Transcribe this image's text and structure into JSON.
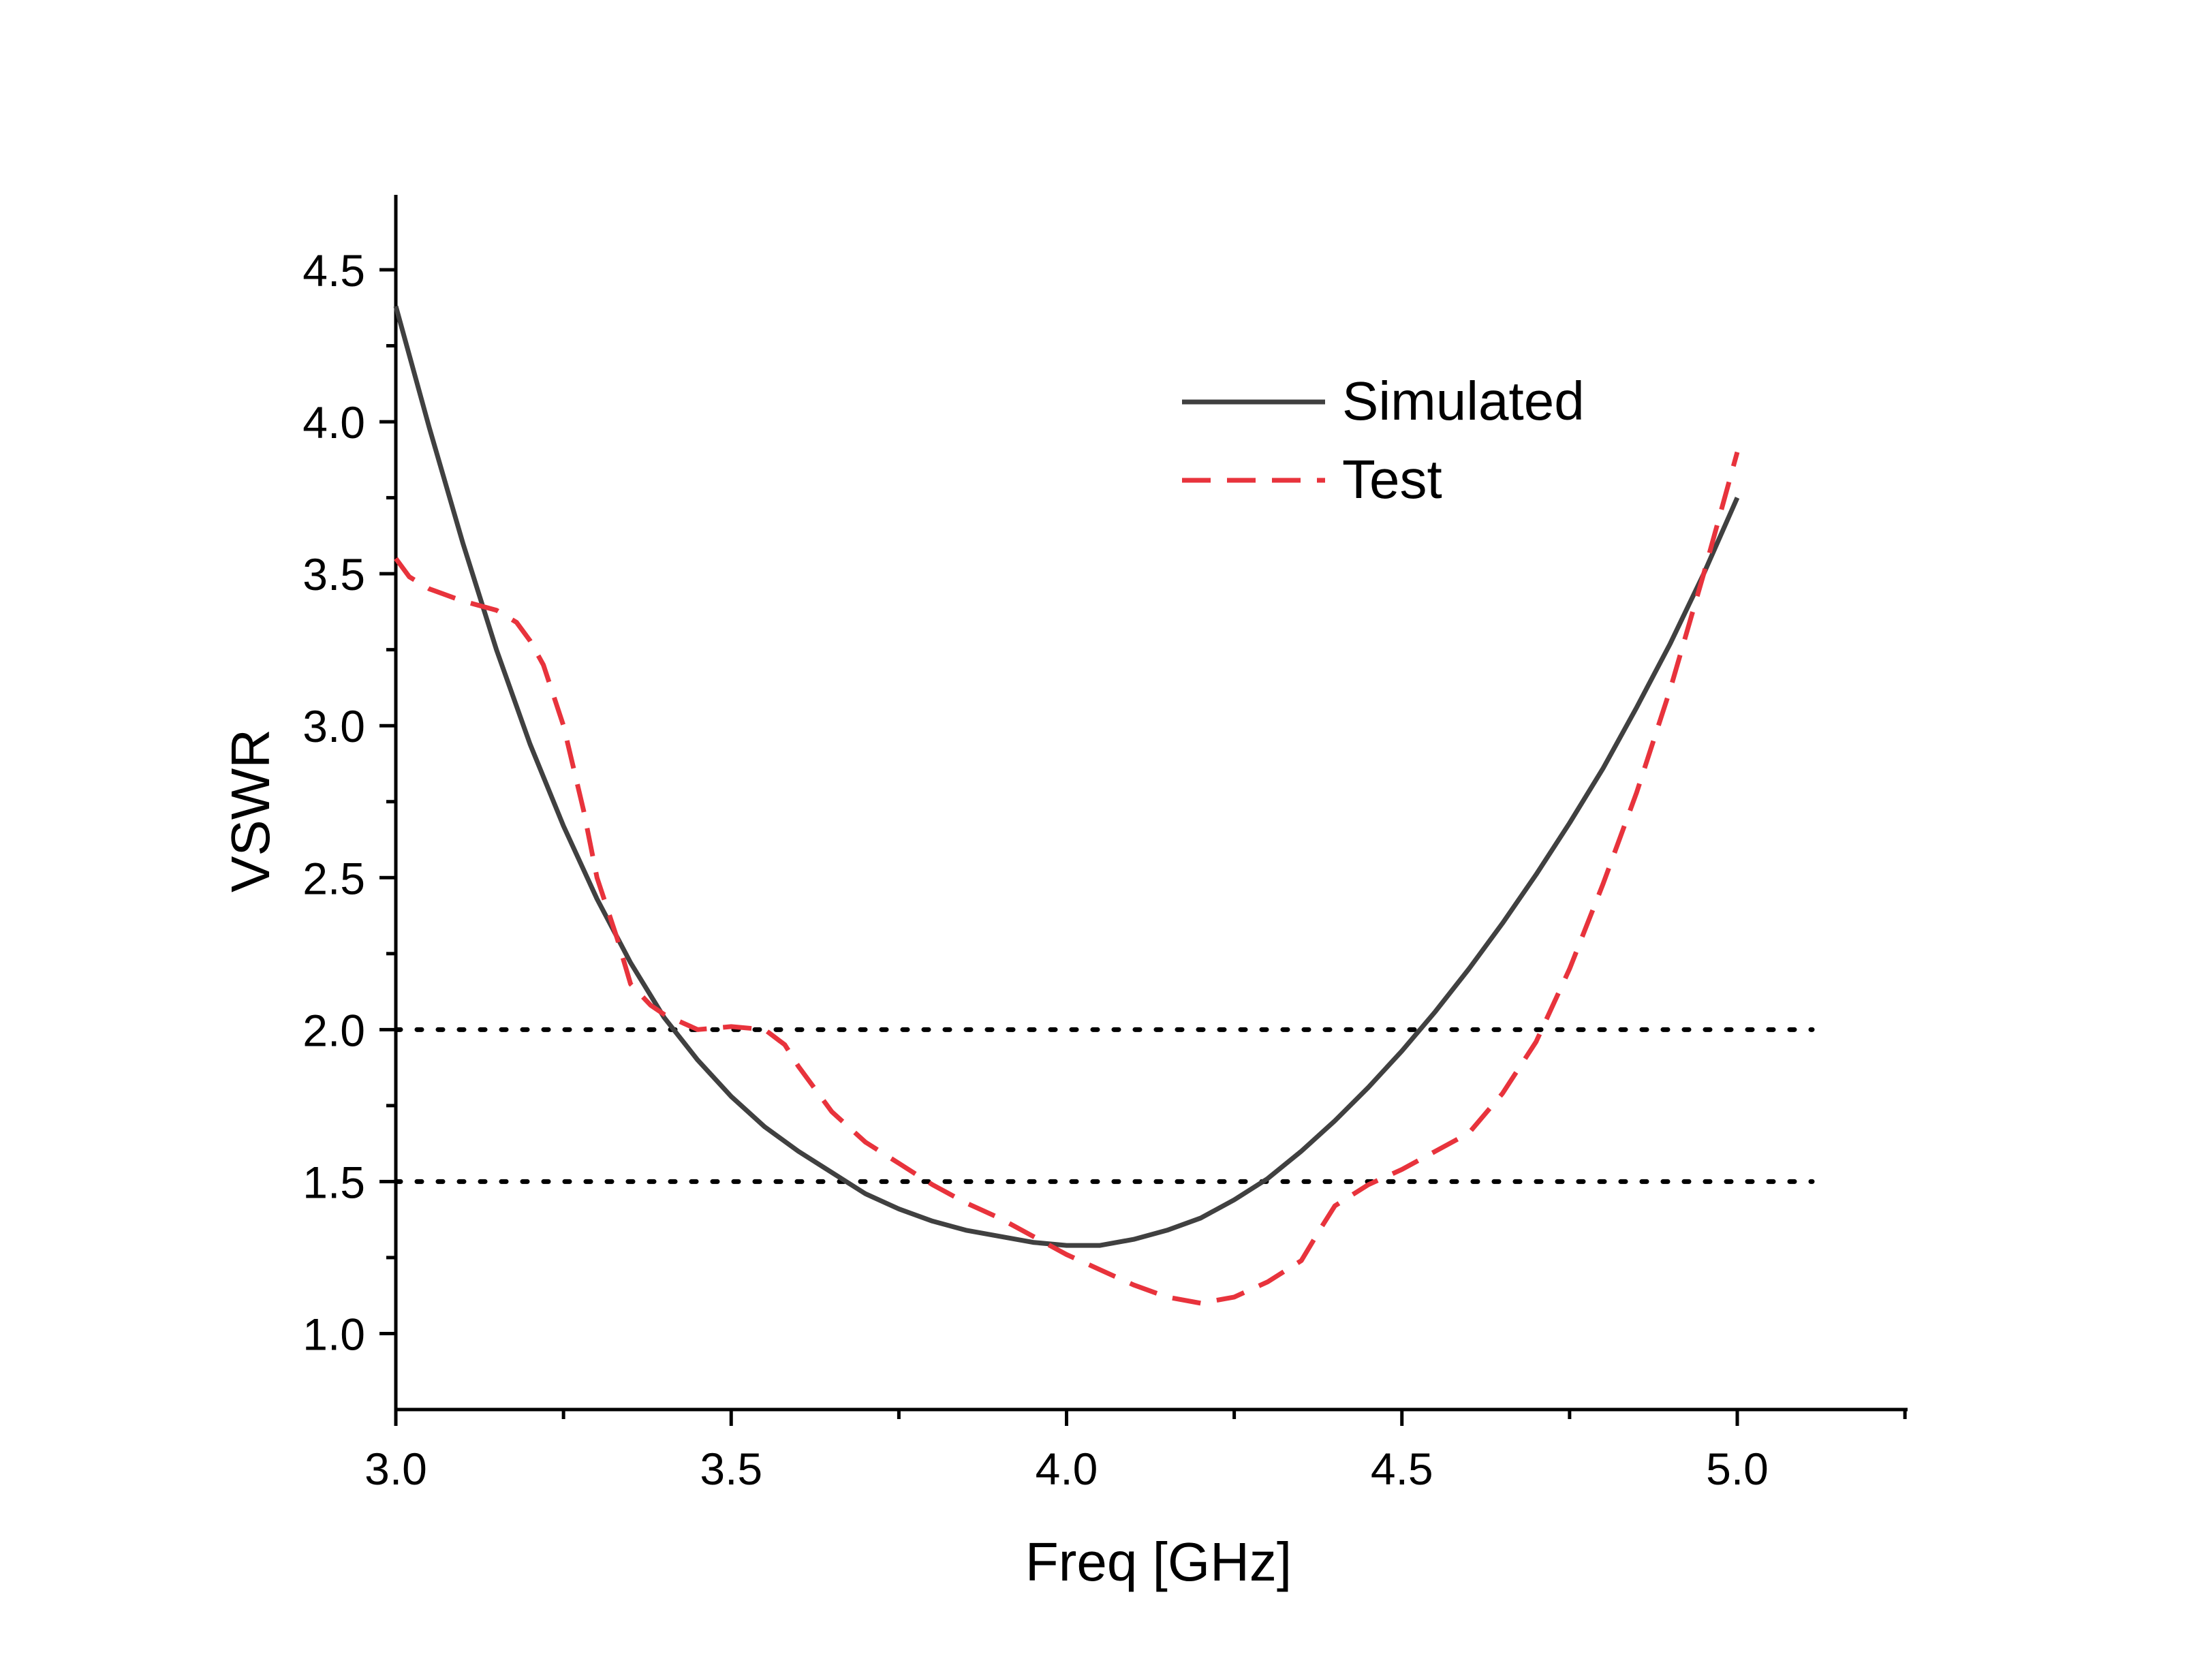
{
  "chart_data": {
    "type": "line",
    "title": "",
    "xlabel": "Freq [GHz]",
    "ylabel": "VSWR",
    "xlim": [
      3.0,
      5.25
    ],
    "ylim": [
      0.75,
      4.75
    ],
    "x_ticks": [
      "3.0",
      "3.5",
      "4.0",
      "4.5",
      "5.0"
    ],
    "y_ticks": [
      "1.0",
      "1.5",
      "2.0",
      "2.5",
      "3.0",
      "3.5",
      "4.0",
      "4.5"
    ],
    "grid": false,
    "legend": {
      "placement": "top-right"
    },
    "series": [
      {
        "name": "Simulated",
        "style": "solid",
        "color": "#404040",
        "x": [
          3.0,
          3.05,
          3.1,
          3.15,
          3.2,
          3.25,
          3.3,
          3.35,
          3.4,
          3.45,
          3.5,
          3.55,
          3.6,
          3.65,
          3.7,
          3.75,
          3.8,
          3.85,
          3.9,
          3.95,
          4.0,
          4.05,
          4.1,
          4.15,
          4.2,
          4.25,
          4.3,
          4.35,
          4.4,
          4.45,
          4.5,
          4.55,
          4.6,
          4.65,
          4.7,
          4.75,
          4.8,
          4.85,
          4.9,
          4.95,
          5.0
        ],
        "y": [
          4.38,
          3.98,
          3.6,
          3.25,
          2.94,
          2.67,
          2.43,
          2.22,
          2.04,
          1.9,
          1.78,
          1.68,
          1.6,
          1.53,
          1.46,
          1.41,
          1.37,
          1.34,
          1.32,
          1.3,
          1.29,
          1.29,
          1.31,
          1.34,
          1.38,
          1.44,
          1.51,
          1.6,
          1.7,
          1.81,
          1.93,
          2.06,
          2.2,
          2.35,
          2.51,
          2.68,
          2.86,
          3.06,
          3.27,
          3.5,
          3.75
        ]
      },
      {
        "name": "Test",
        "style": "dashed",
        "color": "#e8333c",
        "x": [
          3.0,
          3.02,
          3.05,
          3.1,
          3.15,
          3.18,
          3.2,
          3.22,
          3.25,
          3.28,
          3.3,
          3.33,
          3.35,
          3.38,
          3.4,
          3.43,
          3.45,
          3.5,
          3.55,
          3.58,
          3.6,
          3.65,
          3.7,
          3.75,
          3.8,
          3.85,
          3.9,
          3.95,
          4.0,
          4.05,
          4.1,
          4.15,
          4.2,
          4.25,
          4.3,
          4.35,
          4.38,
          4.4,
          4.45,
          4.5,
          4.55,
          4.6,
          4.65,
          4.7,
          4.75,
          4.8,
          4.85,
          4.9,
          4.95,
          5.0
        ],
        "y": [
          3.55,
          3.49,
          3.45,
          3.41,
          3.38,
          3.34,
          3.28,
          3.2,
          3.0,
          2.72,
          2.5,
          2.3,
          2.15,
          2.08,
          2.05,
          2.02,
          2.0,
          2.01,
          2.0,
          1.95,
          1.88,
          1.73,
          1.63,
          1.56,
          1.49,
          1.43,
          1.38,
          1.32,
          1.26,
          1.21,
          1.16,
          1.12,
          1.1,
          1.12,
          1.17,
          1.24,
          1.35,
          1.42,
          1.49,
          1.54,
          1.6,
          1.66,
          1.79,
          1.96,
          2.2,
          2.48,
          2.78,
          3.12,
          3.5,
          3.9
        ]
      }
    ],
    "reference_lines": [
      {
        "y": 2.0,
        "style": "dotted",
        "color": "#000000"
      },
      {
        "y": 1.5,
        "style": "dotted",
        "color": "#000000"
      }
    ]
  }
}
